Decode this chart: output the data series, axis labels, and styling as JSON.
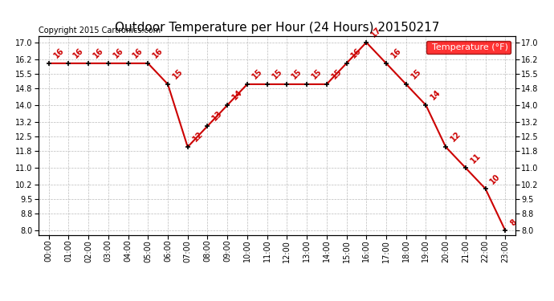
{
  "title": "Outdoor Temperature per Hour (24 Hours) 20150217",
  "copyright": "Copyright 2015 Cartronics.com",
  "legend_label": "Temperature (°F)",
  "hours": [
    "00:00",
    "01:00",
    "02:00",
    "03:00",
    "04:00",
    "05:00",
    "06:00",
    "07:00",
    "08:00",
    "09:00",
    "10:00",
    "11:00",
    "12:00",
    "13:00",
    "14:00",
    "15:00",
    "16:00",
    "17:00",
    "18:00",
    "19:00",
    "20:00",
    "21:00",
    "22:00",
    "23:00"
  ],
  "temps": [
    16,
    16,
    16,
    16,
    16,
    16,
    15,
    12,
    13,
    14,
    15,
    15,
    15,
    15,
    15,
    16,
    17,
    16,
    15,
    14,
    12,
    11,
    10,
    8
  ],
  "line_color": "#cc0000",
  "marker_color": "#000000",
  "label_color": "#cc0000",
  "bg_color": "#ffffff",
  "grid_color": "#bbbbbb",
  "ylim_min": 7.8,
  "ylim_max": 17.3,
  "yticks": [
    8.0,
    8.8,
    9.5,
    10.2,
    11.0,
    11.8,
    12.5,
    13.2,
    14.0,
    14.8,
    15.5,
    16.2,
    17.0
  ],
  "title_fontsize": 11,
  "copyright_fontsize": 7,
  "label_fontsize": 7,
  "tick_fontsize": 7,
  "legend_fontsize": 8
}
